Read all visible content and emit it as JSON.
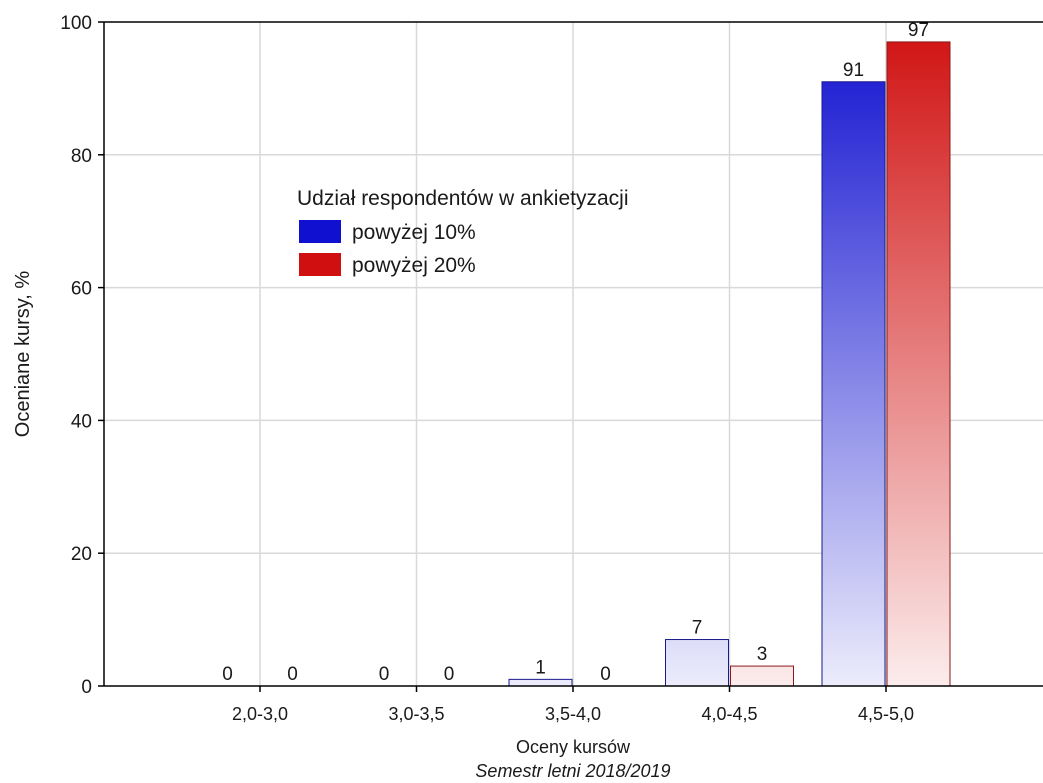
{
  "chart_data": {
    "type": "bar",
    "categories": [
      "2,0-3,0",
      "3,0-3,5",
      "3,5-4,0",
      "4,0-4,5",
      "4,5-5,0"
    ],
    "series": [
      {
        "name": "powyżej 10%",
        "values": [
          0,
          0,
          1,
          7,
          91
        ],
        "labels": [
          "0",
          "0",
          "1",
          "7",
          "91"
        ],
        "color": "#1010d0"
      },
      {
        "name": "powyżej 20%",
        "values": [
          0,
          0,
          0,
          3,
          97
        ],
        "labels": [
          "0",
          "0",
          "0",
          "3",
          "97"
        ],
        "color": "#d01010"
      }
    ],
    "xlabel": "Oceny kursów",
    "xsublabel": "Semestr letni 2018/2019",
    "ylabel": "Oceniane kursy, %",
    "ylim": [
      0,
      100
    ],
    "yticks": [
      "0",
      "20",
      "40",
      "60",
      "80",
      "100"
    ],
    "grid": true,
    "legend": {
      "title": "Udział respondentów w ankietyzacji",
      "placement": "top-center"
    }
  }
}
